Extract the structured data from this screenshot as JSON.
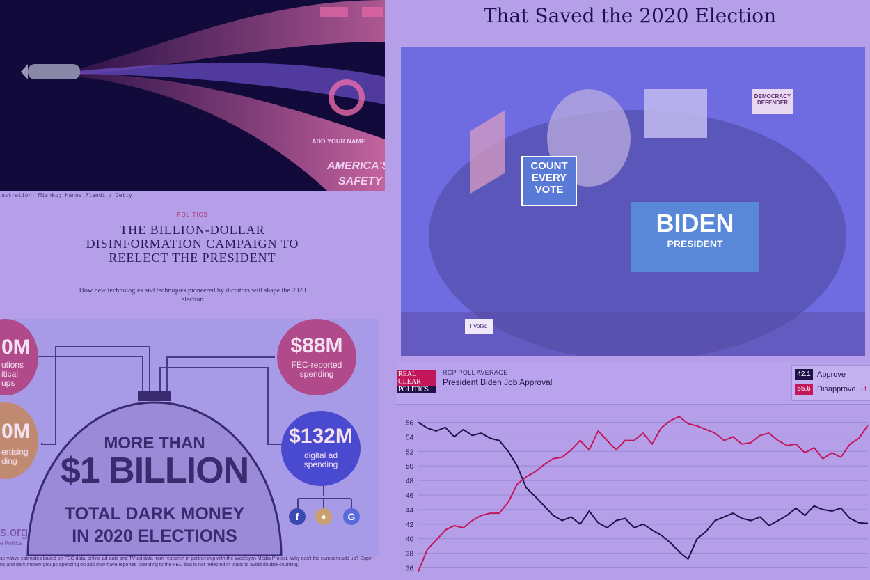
{
  "left_article": {
    "image_caption": "ustration: Mishko; Hanna Alandi / Getty",
    "section": "POLITICS",
    "title": "THE BILLION-DOLLAR DISINFORMATION CAMPAIGN TO REELECT THE PRESIDENT",
    "subtitle": "How new technologies and techniques pioneered by dictators will shape the 2020 election",
    "illustration_text": [
      "ADD YOUR NAME",
      "AMERICA'S",
      "SAFETY"
    ]
  },
  "infographic": {
    "left_top_amount": "0M",
    "left_top_text": [
      "utions",
      "itical",
      "ups"
    ],
    "left_bottom_amount": "0M",
    "left_bottom_text": [
      "ertising",
      "ding"
    ],
    "fec_amount": "$88M",
    "fec_label": "FEC-reported spending",
    "digital_amount": "$132M",
    "digital_label": "digital ad spending",
    "headline_1": "MORE THAN",
    "headline_2": "$1 BILLION",
    "headline_3": "TOTAL DARK MONEY",
    "headline_4": "IN 2020 ELECTIONS",
    "site": "s.org",
    "site_sub": "e Politics",
    "footnote": "servative estimates based on FEC data, online ad data and TV ad data from research in partnership with the Wesleyan Media Project. Why don't the numbers add up? Super\nns and dark money groups spending on ads may have reported spending to the FEC that is not reflected in totals to avoid double-counting.",
    "colors": {
      "pink_circle": "#b04a8a",
      "blue_circle": "#4a4ad0",
      "orange_circle": "#c08a70"
    }
  },
  "right_article": {
    "headline": "That Saved the 2020 Election",
    "collage_signs": [
      "COUNT",
      "EVERY",
      "VOTE",
      "BIDEN",
      "PRESIDENT",
      "DEMOCRACY DEFENDER",
      "I Voted"
    ]
  },
  "rcp": {
    "logo": [
      "REAL",
      "CLEAR",
      "POLITICS"
    ],
    "kicker": "RCP POLL AVERAGE",
    "title": "President Biden Job Approval",
    "approve_value": "42.1",
    "approve_label": "Approve",
    "disapprove_value": "55.6",
    "disapprove_label": "Disapprove",
    "disapprove_suffix": "+1",
    "colors": {
      "approve": "#1e1248",
      "disapprove": "#c2185b"
    }
  },
  "chart_data": {
    "type": "line",
    "title": "President Biden Job Approval",
    "ylim": [
      35,
      57
    ],
    "yticks": [
      36,
      38,
      40,
      42,
      44,
      46,
      48,
      50,
      52,
      54,
      56
    ],
    "grid": true,
    "series": [
      {
        "name": "Approve",
        "color": "#1e1248",
        "values": [
          56,
          55.2,
          54.8,
          55.3,
          54,
          55,
          54.2,
          54.5,
          53.8,
          53.5,
          52,
          50,
          47,
          45.8,
          44.5,
          43.2,
          42.5,
          43,
          42,
          43.8,
          42.2,
          41.5,
          42.5,
          42.8,
          41.5,
          42,
          41.2,
          40.5,
          39.5,
          38.2,
          37.2,
          40,
          41,
          42.5,
          43,
          43.5,
          42.8,
          42.5,
          43,
          41.8,
          42.5,
          43.2,
          44.2,
          43.2,
          44.5,
          44,
          43.8,
          44.2,
          42.8,
          42.2,
          42.1
        ]
      },
      {
        "name": "Disapprove",
        "color": "#c2185b",
        "values": [
          35.5,
          38.5,
          39.8,
          41.2,
          41.8,
          41.5,
          42.5,
          43.2,
          43.5,
          43.5,
          45,
          47.5,
          48.5,
          49.2,
          50.2,
          51,
          51.2,
          52.2,
          53.5,
          52.2,
          54.8,
          53.5,
          52.2,
          53.5,
          53.5,
          54.5,
          53,
          55.2,
          56.2,
          56.8,
          55.8,
          55.5,
          55,
          54.5,
          53.5,
          54,
          53,
          53.2,
          54.2,
          54.5,
          53.5,
          52.8,
          53,
          51.8,
          52.5,
          51,
          51.8,
          51.2,
          53,
          53.8,
          55.6
        ]
      }
    ]
  }
}
